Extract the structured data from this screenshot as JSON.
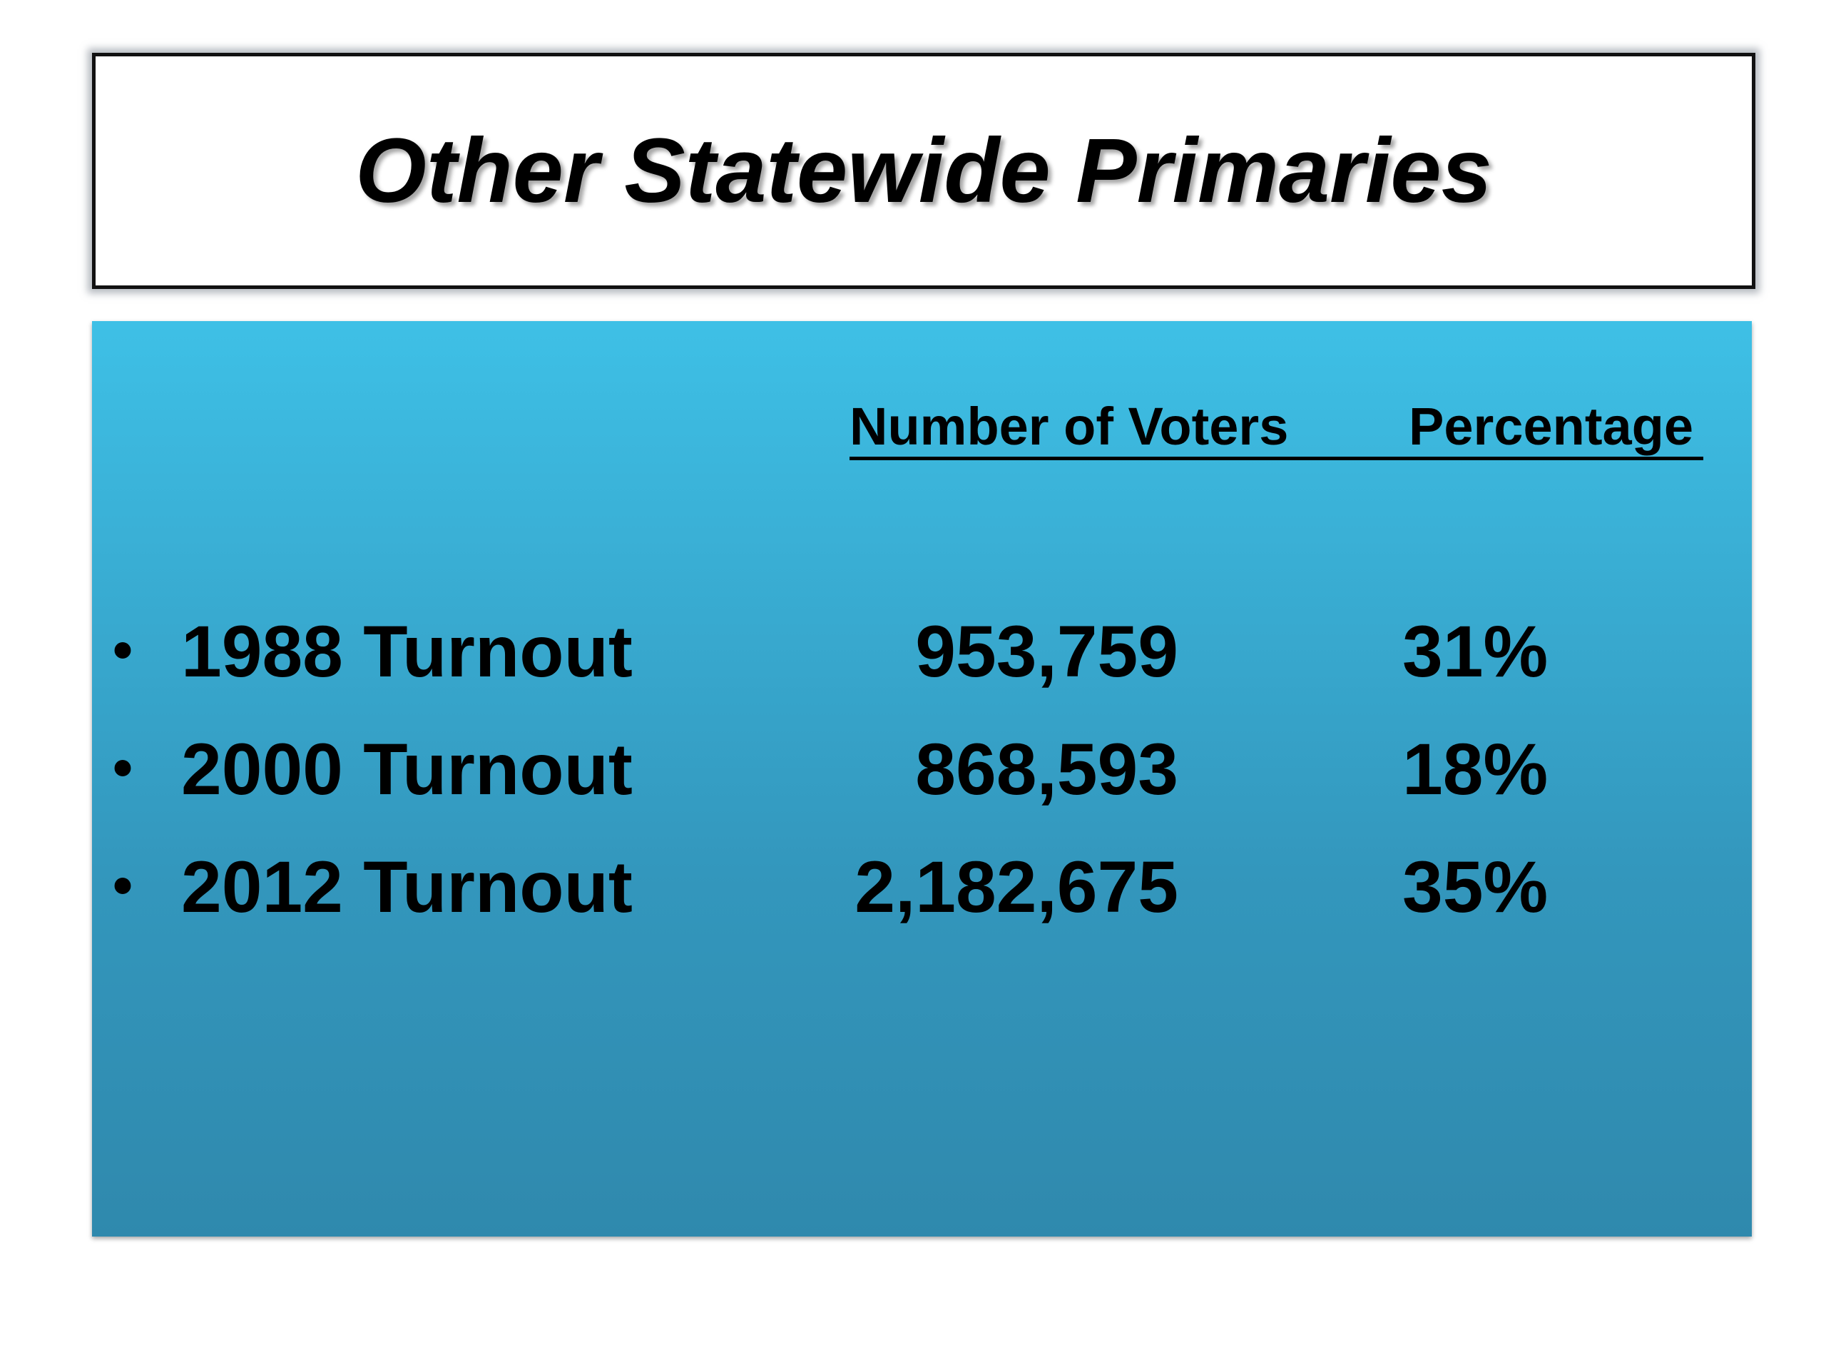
{
  "title": "Other Statewide Primaries",
  "table": {
    "headers": [
      "Number of Voters",
      "Percentage"
    ],
    "rows": [
      [
        "1988 Turnout",
        "953,759",
        "31%"
      ],
      [
        "2000 Turnout",
        "868,593",
        "18%"
      ],
      [
        "2012 Turnout",
        "2,182,675",
        "35%"
      ]
    ]
  }
}
